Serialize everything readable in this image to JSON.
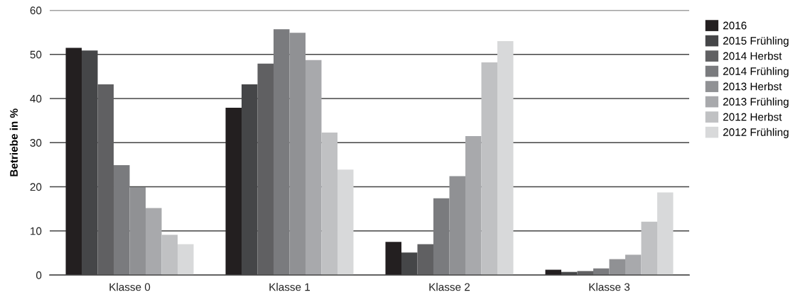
{
  "chart_data": {
    "type": "bar",
    "ylabel": "Betriebe in %",
    "categories": [
      "Klasse 0",
      "Klasse 1",
      "Klasse 2",
      "Klasse 3"
    ],
    "series": [
      {
        "name": "2016",
        "color": "#231f20",
        "values": [
          51.5,
          37.9,
          7.5,
          1.2
        ]
      },
      {
        "name": "2015 Frühling",
        "color": "#454648",
        "values": [
          50.9,
          43.2,
          5.1,
          0.7
        ]
      },
      {
        "name": "2014 Herbst",
        "color": "#606062",
        "values": [
          43.2,
          47.9,
          7.0,
          0.9
        ]
      },
      {
        "name": "2014 Frühling",
        "color": "#7a7b7e",
        "values": [
          24.9,
          55.7,
          17.4,
          1.5
        ]
      },
      {
        "name": "2013 Herbst",
        "color": "#909194",
        "values": [
          19.9,
          54.9,
          22.4,
          3.6
        ]
      },
      {
        "name": "2013 Frühling",
        "color": "#a8a9ac",
        "values": [
          15.2,
          48.7,
          31.5,
          4.6
        ]
      },
      {
        "name": "2012 Herbst",
        "color": "#c0c1c3",
        "values": [
          9.1,
          32.3,
          48.2,
          12.1
        ]
      },
      {
        "name": "2012 Frühling",
        "color": "#d8d9da",
        "values": [
          7.0,
          23.9,
          53.0,
          18.7
        ]
      }
    ],
    "ylim": [
      0,
      60
    ],
    "yticks": [
      0,
      10,
      20,
      30,
      40,
      50,
      60
    ],
    "grid": "y",
    "legend": "right"
  }
}
